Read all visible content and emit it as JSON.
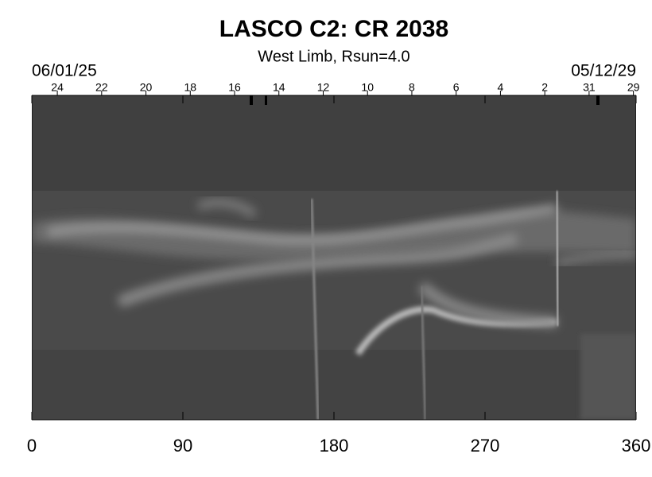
{
  "chart_data": {
    "type": "synoptic-map",
    "title": "LASCO C2: CR 2038",
    "subtitle": "West Limb, Rsun=4.0",
    "start_date": "06/01/25",
    "end_date": "05/12/29",
    "xlim": [
      0,
      360
    ],
    "xticks": [
      0,
      90,
      180,
      270,
      360
    ],
    "top_ticks": [
      {
        "value": 15.2,
        "label": "24"
      },
      {
        "value": 41.6,
        "label": "22"
      },
      {
        "value": 68.0,
        "label": "20"
      },
      {
        "value": 94.4,
        "label": "18"
      },
      {
        "value": 120.8,
        "label": "16"
      },
      {
        "value": 147.2,
        "label": "14"
      },
      {
        "value": 173.6,
        "label": "12"
      },
      {
        "value": 200.0,
        "label": "10"
      },
      {
        "value": 226.4,
        "label": "8"
      },
      {
        "value": 252.8,
        "label": "6"
      },
      {
        "value": 279.2,
        "label": "4"
      },
      {
        "value": 305.6,
        "label": "2"
      },
      {
        "value": 332.0,
        "label": "31"
      },
      {
        "value": 358.4,
        "label": "29"
      }
    ]
  }
}
